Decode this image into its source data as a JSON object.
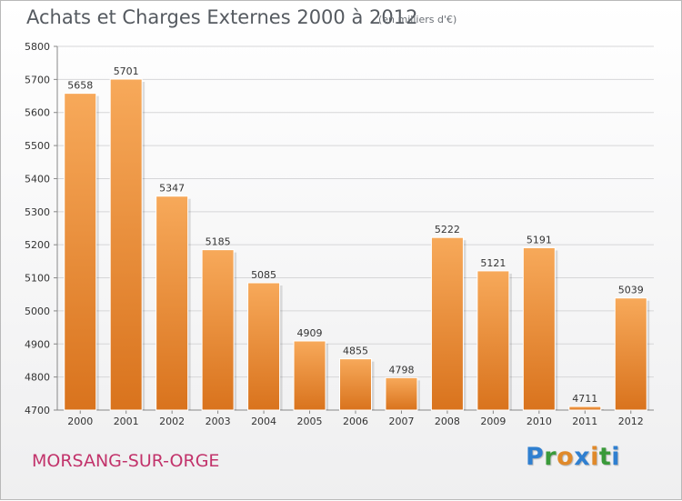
{
  "header": {
    "title": "Achats et Charges Externes 2000 à 2012",
    "subtitle": "(en milliers d'€)"
  },
  "footer": {
    "city": "MORSANG-SUR-ORGE",
    "logo_letters": [
      {
        "char": "P",
        "color": "#2f7fd0"
      },
      {
        "char": "r",
        "color": "#3a9a3a"
      },
      {
        "char": "o",
        "color": "#e0892a"
      },
      {
        "char": "x",
        "color": "#2f7fd0"
      },
      {
        "char": "i",
        "color": "#e0892a"
      },
      {
        "char": "t",
        "color": "#3a9a3a"
      },
      {
        "char": "i",
        "color": "#2f7fd0"
      }
    ]
  },
  "chart_data": {
    "type": "bar",
    "title": "Achats et Charges Externes 2000 à 2012",
    "subtitle": "(en milliers d'€)",
    "categories": [
      "2000",
      "2001",
      "2002",
      "2003",
      "2004",
      "2005",
      "2006",
      "2007",
      "2008",
      "2009",
      "2010",
      "2011",
      "2012"
    ],
    "values": [
      5658,
      5701,
      5347,
      5185,
      5085,
      4909,
      4855,
      4798,
      5222,
      5121,
      5191,
      4711,
      5039
    ],
    "ylim": [
      4700,
      5800
    ],
    "yticks": [
      4700,
      4800,
      4900,
      5000,
      5100,
      5200,
      5300,
      5400,
      5500,
      5600,
      5700,
      5800
    ],
    "grid": true,
    "bar_color_top": "#f7a95a",
    "bar_color_bottom": "#d9731d"
  }
}
